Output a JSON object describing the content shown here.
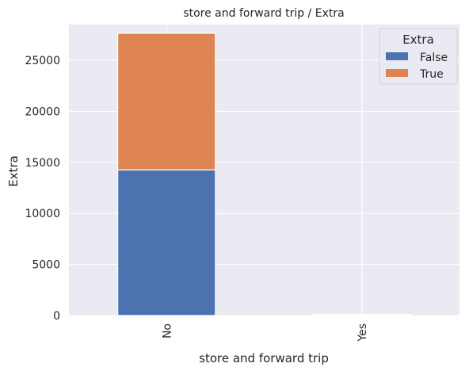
{
  "chart_data": {
    "type": "bar",
    "stacked": true,
    "title": "store and forward trip / Extra",
    "xlabel": "store and forward trip",
    "ylabel": "Extra",
    "categories": [
      "No",
      "Yes"
    ],
    "series": [
      {
        "name": "False",
        "values": [
          14270,
          60
        ],
        "color": "#4c72b0"
      },
      {
        "name": "True",
        "values": [
          13380,
          45
        ],
        "color": "#dd8452"
      }
    ],
    "ylim": [
      0,
      28500
    ],
    "yticks": [
      0,
      5000,
      10000,
      15000,
      20000,
      25000
    ],
    "ytick_labels": [
      "0",
      "5000",
      "10000",
      "15000",
      "20000",
      "25000"
    ],
    "grid": true,
    "legend": {
      "title": "Extra",
      "placement": "top-right"
    },
    "colors": {
      "plot_background": "#eaeaf2",
      "grid": "#ffffff"
    }
  }
}
